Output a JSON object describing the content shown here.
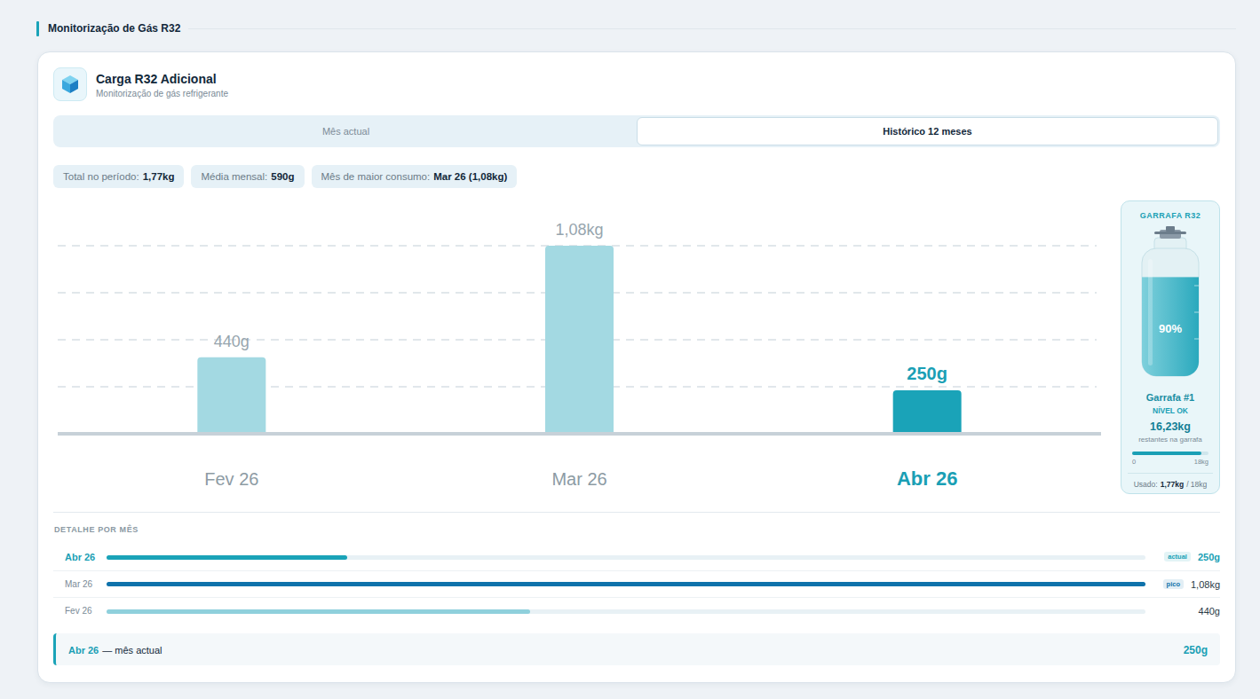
{
  "section_title": "Monitorização de Gás R32",
  "header": {
    "title": "Carga R32 Adicional",
    "subtitle": "Monitorização de gás refrigerante"
  },
  "tabs": [
    {
      "label": "Mês actual",
      "active": false
    },
    {
      "label": "Histórico 12 meses",
      "active": true
    }
  ],
  "stats": [
    {
      "label": "Total no período:",
      "value": "1,77kg"
    },
    {
      "label": "Média mensal:",
      "value": "590g"
    },
    {
      "label": "Mês de maior consumo:",
      "value": "Mar 26 (1,08kg)"
    }
  ],
  "chart_data": {
    "type": "bar",
    "categories": [
      "Fev 26",
      "Mar 26",
      "Abr 26"
    ],
    "values": [
      440,
      1080,
      250
    ],
    "value_labels": [
      "440g",
      "1,08kg",
      "250g"
    ],
    "colors": [
      "#a3d9e2",
      "#a3d9e2",
      "#1aa3b8"
    ],
    "ylim": [
      0,
      1080
    ],
    "yticks": [
      0,
      270,
      540,
      810,
      1080
    ],
    "grid": true,
    "data_labels": true,
    "tick_labels": "x"
  },
  "bottle": {
    "title": "GARRAFA R32",
    "level": 90,
    "level_label": "90%",
    "name": "Garrafa #1",
    "status": "NÍVEL OK",
    "gauge": {
      "value": 16.23,
      "value_label": "16,23kg",
      "caption": "restantes na garrafa",
      "xlim": [
        0,
        18
      ],
      "xticks": [
        0,
        {
          "value": 18,
          "label": "18kg"
        }
      ]
    },
    "used_prefix": "Usado:",
    "used_label": "1,77kg",
    "capacity_suffix": "/ 18kg"
  },
  "detail": {
    "title": "DETALHE POR MÊS",
    "xlim": [
      0,
      1080
    ],
    "rows": [
      {
        "label": "Abr 26",
        "value": 250,
        "value_label": "250g",
        "badge": "actual",
        "color": "#1aa3b8"
      },
      {
        "label": "Mar 26",
        "value": 1080,
        "value_label": "1,08kg",
        "badge": "pico",
        "color": "#0e72ab"
      },
      {
        "label": "Fev 26",
        "value": 440,
        "value_label": "440g",
        "color": "#8fd0dc"
      }
    ]
  },
  "footer": {
    "month": "Abr 26",
    "text": "— mês actual",
    "value_label": "250g"
  }
}
